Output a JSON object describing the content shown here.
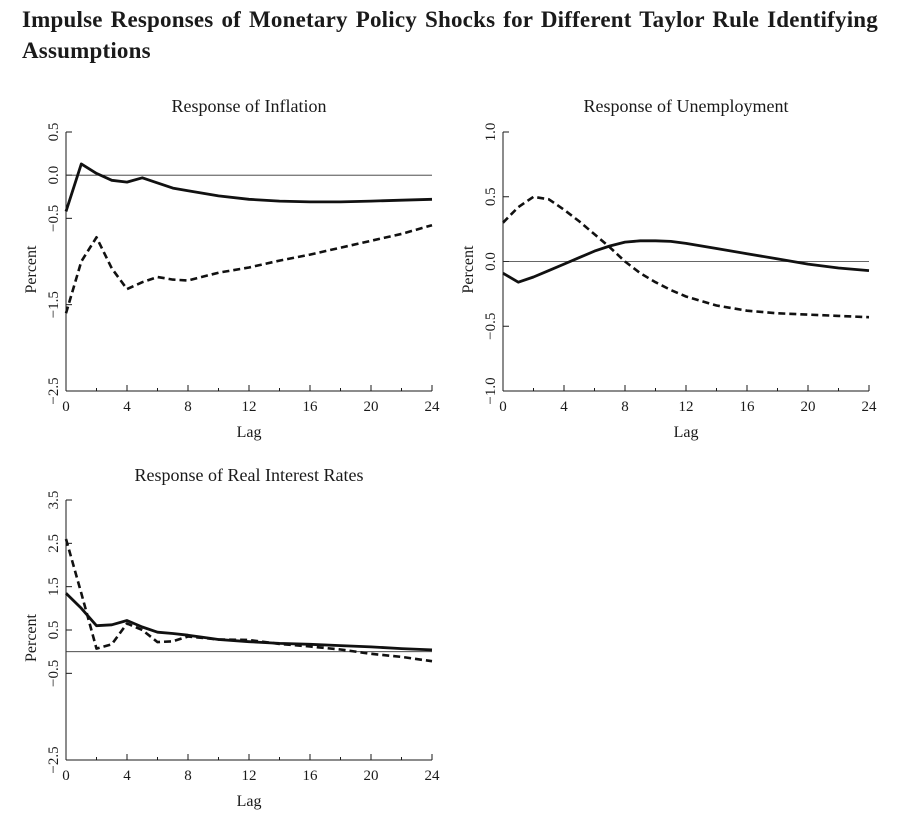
{
  "figure_title": "Impulse Responses of Monetary Policy Shocks for Different Taylor Rule Identifying Assumptions",
  "chart_data": [
    {
      "type": "line",
      "title": "Response of Inflation",
      "xlabel": "Lag",
      "ylabel": "Percent",
      "xlim": [
        0,
        24
      ],
      "ylim": [
        -2.5,
        0.5
      ],
      "xticks": [
        0,
        4,
        8,
        12,
        16,
        20,
        24
      ],
      "xtick_labels": [
        "0",
        "4",
        "8",
        "12",
        "16",
        "20",
        "24"
      ],
      "yticks": [
        -2.5,
        -1.5,
        -0.5,
        0.0,
        0.5
      ],
      "ytick_labels": [
        "−2.5",
        "−1.5",
        "−0.5",
        "0.0",
        "0.5"
      ],
      "reference_line": 0,
      "series": [
        {
          "name": "solid",
          "style": "solid",
          "x": [
            0,
            1,
            2,
            3,
            4,
            5,
            6,
            7,
            8,
            10,
            12,
            14,
            16,
            18,
            20,
            22,
            24
          ],
          "values": [
            -0.42,
            0.13,
            0.02,
            -0.06,
            -0.08,
            -0.03,
            -0.09,
            -0.15,
            -0.18,
            -0.24,
            -0.28,
            -0.3,
            -0.31,
            -0.31,
            -0.3,
            -0.29,
            -0.28
          ]
        },
        {
          "name": "dashed",
          "style": "dashed",
          "x": [
            0,
            1,
            2,
            3,
            4,
            5,
            6,
            7,
            8,
            10,
            12,
            14,
            16,
            18,
            20,
            22,
            24
          ],
          "values": [
            -1.6,
            -1.0,
            -0.72,
            -1.08,
            -1.32,
            -1.24,
            -1.18,
            -1.21,
            -1.22,
            -1.13,
            -1.07,
            -0.99,
            -0.92,
            -0.84,
            -0.76,
            -0.68,
            -0.58
          ]
        }
      ]
    },
    {
      "type": "line",
      "title": "Response of Unemployment",
      "xlabel": "Lag",
      "ylabel": "Percent",
      "xlim": [
        0,
        24
      ],
      "ylim": [
        -1.0,
        1.0
      ],
      "xticks": [
        0,
        4,
        8,
        12,
        16,
        20,
        24
      ],
      "xtick_labels": [
        "0",
        "4",
        "8",
        "12",
        "16",
        "20",
        "24"
      ],
      "yticks": [
        -1.0,
        -0.5,
        0.0,
        0.5,
        1.0
      ],
      "ytick_labels": [
        "−1.0",
        "−0.5",
        "0.0",
        "0.5",
        "1.0"
      ],
      "reference_line": 0,
      "series": [
        {
          "name": "solid",
          "style": "solid",
          "x": [
            0,
            1,
            2,
            3,
            4,
            5,
            6,
            7,
            8,
            9,
            10,
            11,
            12,
            14,
            16,
            18,
            20,
            22,
            24
          ],
          "values": [
            -0.09,
            -0.16,
            -0.12,
            -0.07,
            -0.02,
            0.03,
            0.08,
            0.12,
            0.15,
            0.16,
            0.16,
            0.155,
            0.14,
            0.1,
            0.06,
            0.02,
            -0.02,
            -0.05,
            -0.07
          ]
        },
        {
          "name": "dashed",
          "style": "dashed",
          "x": [
            0,
            1,
            2,
            3,
            4,
            5,
            6,
            7,
            8,
            9,
            10,
            11,
            12,
            14,
            16,
            18,
            20,
            22,
            24
          ],
          "values": [
            0.3,
            0.42,
            0.5,
            0.48,
            0.4,
            0.31,
            0.21,
            0.11,
            0.0,
            -0.09,
            -0.16,
            -0.22,
            -0.27,
            -0.34,
            -0.38,
            -0.4,
            -0.41,
            -0.42,
            -0.43
          ]
        }
      ]
    },
    {
      "type": "line",
      "title": "Response of Real Interest Rates",
      "xlabel": "Lag",
      "ylabel": "Percent",
      "xlim": [
        0,
        24
      ],
      "ylim": [
        -2.5,
        3.5
      ],
      "xticks": [
        0,
        4,
        8,
        12,
        16,
        20,
        24
      ],
      "xtick_labels": [
        "0",
        "4",
        "8",
        "12",
        "16",
        "20",
        "24"
      ],
      "yticks": [
        -2.5,
        -0.5,
        0.5,
        1.5,
        2.5,
        3.5
      ],
      "ytick_labels": [
        "−2.5",
        "−0.5",
        "0.5",
        "1.5",
        "2.5",
        "3.5"
      ],
      "reference_line": 0,
      "series": [
        {
          "name": "solid",
          "style": "solid",
          "x": [
            0,
            1,
            2,
            3,
            4,
            5,
            6,
            7,
            8,
            10,
            12,
            14,
            16,
            18,
            20,
            22,
            24
          ],
          "values": [
            1.35,
            1.0,
            0.6,
            0.62,
            0.72,
            0.57,
            0.45,
            0.42,
            0.38,
            0.28,
            0.23,
            0.19,
            0.17,
            0.14,
            0.11,
            0.07,
            0.04
          ]
        },
        {
          "name": "dashed",
          "style": "dashed",
          "x": [
            0,
            1,
            2,
            3,
            4,
            5,
            6,
            7,
            8,
            10,
            12,
            14,
            16,
            18,
            20,
            22,
            24
          ],
          "values": [
            2.6,
            1.35,
            0.07,
            0.17,
            0.65,
            0.5,
            0.22,
            0.24,
            0.35,
            0.28,
            0.27,
            0.18,
            0.12,
            0.05,
            -0.05,
            -0.12,
            -0.22
          ]
        }
      ]
    }
  ]
}
